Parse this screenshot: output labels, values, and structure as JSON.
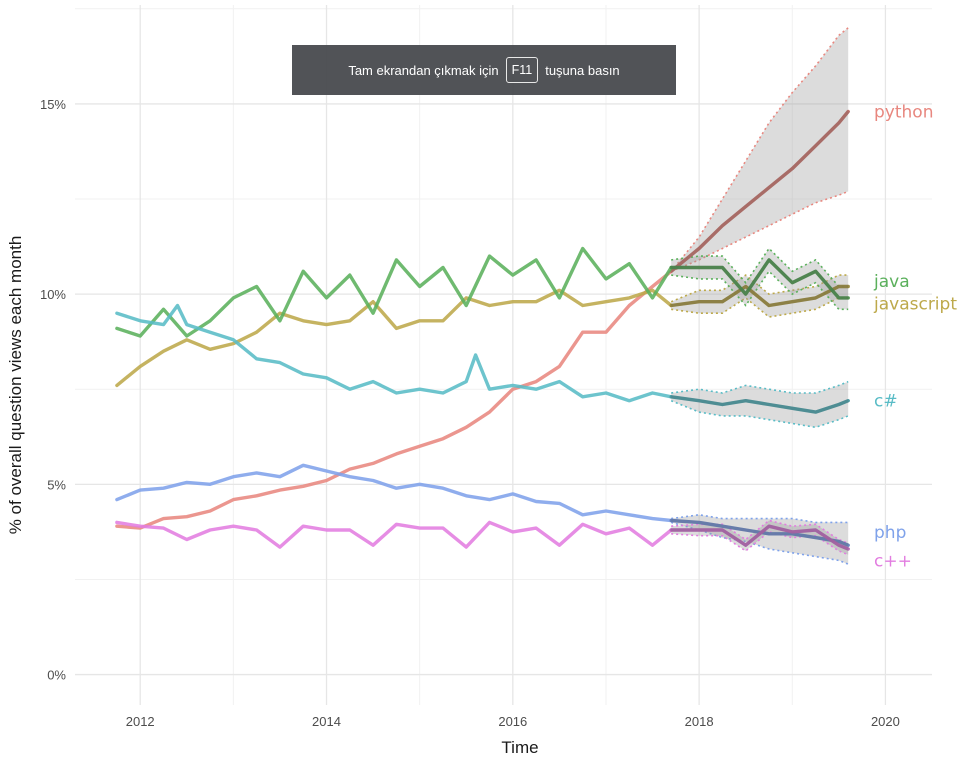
{
  "toast": {
    "before": "Tam ekrandan çıkmak için",
    "key": "F11",
    "after": "tuşuna basın"
  },
  "chart_data": {
    "type": "line",
    "title": "",
    "xlabel": "Time",
    "ylabel": "% of overall question views each month",
    "xlim": [
      2011.3,
      2020.5
    ],
    "ylim": [
      -0.8,
      17.6
    ],
    "x_ticks": [
      {
        "value": 2012,
        "label": "2012"
      },
      {
        "value": 2014,
        "label": "2014"
      },
      {
        "value": 2016,
        "label": "2016"
      },
      {
        "value": 2018,
        "label": "2018"
      },
      {
        "value": 2020,
        "label": "2020"
      }
    ],
    "y_ticks": [
      {
        "value": 0,
        "label": "0%"
      },
      {
        "value": 5,
        "label": "5%"
      },
      {
        "value": 10,
        "label": "10%"
      },
      {
        "value": 15,
        "label": "15%"
      }
    ],
    "grid": true,
    "legend": "none (direct labels at line ends)",
    "series": [
      {
        "name": "python",
        "color": "#e8877f",
        "history": [
          [
            2011.75,
            3.9
          ],
          [
            2012.0,
            3.85
          ],
          [
            2012.25,
            4.1
          ],
          [
            2012.5,
            4.15
          ],
          [
            2012.75,
            4.3
          ],
          [
            2013.0,
            4.6
          ],
          [
            2013.25,
            4.7
          ],
          [
            2013.5,
            4.85
          ],
          [
            2013.75,
            4.95
          ],
          [
            2014.0,
            5.1
          ],
          [
            2014.25,
            5.4
          ],
          [
            2014.5,
            5.55
          ],
          [
            2014.75,
            5.8
          ],
          [
            2015.0,
            6.0
          ],
          [
            2015.25,
            6.2
          ],
          [
            2015.5,
            6.5
          ],
          [
            2015.75,
            6.9
          ],
          [
            2016.0,
            7.5
          ],
          [
            2016.25,
            7.7
          ],
          [
            2016.5,
            8.1
          ],
          [
            2016.75,
            9.0
          ],
          [
            2017.0,
            9.0
          ],
          [
            2017.25,
            9.7
          ],
          [
            2017.5,
            10.2
          ],
          [
            2017.7,
            10.6
          ]
        ],
        "forecast": [
          [
            2017.7,
            10.6
          ],
          [
            2018.0,
            11.2
          ],
          [
            2018.25,
            11.8
          ],
          [
            2018.5,
            12.3
          ],
          [
            2018.75,
            12.8
          ],
          [
            2019.0,
            13.3
          ],
          [
            2019.25,
            13.9
          ],
          [
            2019.5,
            14.5
          ],
          [
            2019.6,
            14.8
          ]
        ],
        "band": [
          [
            2017.7,
            10.6,
            10.6
          ],
          [
            2018.0,
            11.5,
            10.9
          ],
          [
            2018.25,
            12.5,
            11.2
          ],
          [
            2018.5,
            13.5,
            11.5
          ],
          [
            2018.75,
            14.5,
            11.8
          ],
          [
            2019.0,
            15.3,
            12.1
          ],
          [
            2019.25,
            16.0,
            12.4
          ],
          [
            2019.5,
            16.8,
            12.6
          ],
          [
            2019.6,
            17.0,
            12.7
          ]
        ]
      },
      {
        "name": "javascript",
        "color": "#bda94b",
        "history": [
          [
            2011.75,
            7.6
          ],
          [
            2012.0,
            8.1
          ],
          [
            2012.25,
            8.5
          ],
          [
            2012.5,
            8.8
          ],
          [
            2012.75,
            8.55
          ],
          [
            2013.0,
            8.7
          ],
          [
            2013.25,
            9.0
          ],
          [
            2013.5,
            9.5
          ],
          [
            2013.75,
            9.3
          ],
          [
            2014.0,
            9.2
          ],
          [
            2014.25,
            9.3
          ],
          [
            2014.5,
            9.8
          ],
          [
            2014.75,
            9.1
          ],
          [
            2015.0,
            9.3
          ],
          [
            2015.25,
            9.3
          ],
          [
            2015.5,
            9.9
          ],
          [
            2015.75,
            9.7
          ],
          [
            2016.0,
            9.8
          ],
          [
            2016.25,
            9.8
          ],
          [
            2016.5,
            10.1
          ],
          [
            2016.75,
            9.7
          ],
          [
            2017.0,
            9.8
          ],
          [
            2017.25,
            9.9
          ],
          [
            2017.5,
            10.1
          ],
          [
            2017.7,
            9.7
          ]
        ],
        "forecast": [
          [
            2017.7,
            9.7
          ],
          [
            2018.0,
            9.8
          ],
          [
            2018.25,
            9.8
          ],
          [
            2018.5,
            10.2
          ],
          [
            2018.75,
            9.7
          ],
          [
            2019.0,
            9.8
          ],
          [
            2019.25,
            9.9
          ],
          [
            2019.5,
            10.2
          ],
          [
            2019.6,
            10.2
          ]
        ],
        "band": [
          [
            2017.7,
            9.8,
            9.6
          ],
          [
            2018.0,
            10.1,
            9.5
          ],
          [
            2018.25,
            10.1,
            9.5
          ],
          [
            2018.5,
            10.5,
            9.9
          ],
          [
            2018.75,
            10.0,
            9.4
          ],
          [
            2019.0,
            10.1,
            9.5
          ],
          [
            2019.25,
            10.2,
            9.6
          ],
          [
            2019.5,
            10.5,
            9.9
          ],
          [
            2019.6,
            10.5,
            9.9
          ]
        ]
      },
      {
        "name": "java",
        "color": "#5bb05c",
        "history": [
          [
            2011.75,
            9.1
          ],
          [
            2012.0,
            8.9
          ],
          [
            2012.25,
            9.6
          ],
          [
            2012.5,
            8.9
          ],
          [
            2012.75,
            9.3
          ],
          [
            2013.0,
            9.9
          ],
          [
            2013.25,
            10.2
          ],
          [
            2013.5,
            9.3
          ],
          [
            2013.75,
            10.6
          ],
          [
            2014.0,
            9.9
          ],
          [
            2014.25,
            10.5
          ],
          [
            2014.5,
            9.5
          ],
          [
            2014.75,
            10.9
          ],
          [
            2015.0,
            10.2
          ],
          [
            2015.25,
            10.7
          ],
          [
            2015.5,
            9.7
          ],
          [
            2015.75,
            11.0
          ],
          [
            2016.0,
            10.5
          ],
          [
            2016.25,
            10.9
          ],
          [
            2016.5,
            9.9
          ],
          [
            2016.75,
            11.2
          ],
          [
            2017.0,
            10.4
          ],
          [
            2017.25,
            10.8
          ],
          [
            2017.5,
            9.9
          ],
          [
            2017.7,
            10.7
          ]
        ],
        "forecast": [
          [
            2017.7,
            10.7
          ],
          [
            2018.0,
            10.7
          ],
          [
            2018.25,
            10.7
          ],
          [
            2018.5,
            10.0
          ],
          [
            2018.75,
            10.9
          ],
          [
            2019.0,
            10.3
          ],
          [
            2019.25,
            10.6
          ],
          [
            2019.5,
            9.9
          ],
          [
            2019.6,
            9.9
          ]
        ],
        "band": [
          [
            2017.7,
            10.9,
            10.5
          ],
          [
            2018.0,
            11.0,
            10.4
          ],
          [
            2018.25,
            11.0,
            10.4
          ],
          [
            2018.5,
            10.3,
            9.7
          ],
          [
            2018.75,
            11.2,
            10.6
          ],
          [
            2019.0,
            10.6,
            10.0
          ],
          [
            2019.25,
            10.9,
            10.3
          ],
          [
            2019.5,
            10.2,
            9.6
          ],
          [
            2019.6,
            10.2,
            9.6
          ]
        ]
      },
      {
        "name": "c#",
        "color": "#59bcc6",
        "history": [
          [
            2011.75,
            9.5
          ],
          [
            2012.0,
            9.3
          ],
          [
            2012.25,
            9.2
          ],
          [
            2012.4,
            9.7
          ],
          [
            2012.5,
            9.2
          ],
          [
            2012.75,
            9.0
          ],
          [
            2013.0,
            8.8
          ],
          [
            2013.25,
            8.3
          ],
          [
            2013.5,
            8.2
          ],
          [
            2013.75,
            7.9
          ],
          [
            2014.0,
            7.8
          ],
          [
            2014.25,
            7.5
          ],
          [
            2014.5,
            7.7
          ],
          [
            2014.75,
            7.4
          ],
          [
            2015.0,
            7.5
          ],
          [
            2015.25,
            7.4
          ],
          [
            2015.5,
            7.7
          ],
          [
            2015.6,
            8.4
          ],
          [
            2015.75,
            7.5
          ],
          [
            2016.0,
            7.6
          ],
          [
            2016.25,
            7.5
          ],
          [
            2016.5,
            7.7
          ],
          [
            2016.75,
            7.3
          ],
          [
            2017.0,
            7.4
          ],
          [
            2017.25,
            7.2
          ],
          [
            2017.5,
            7.4
          ],
          [
            2017.7,
            7.3
          ]
        ],
        "forecast": [
          [
            2017.7,
            7.3
          ],
          [
            2018.0,
            7.2
          ],
          [
            2018.25,
            7.1
          ],
          [
            2018.5,
            7.2
          ],
          [
            2018.75,
            7.1
          ],
          [
            2019.0,
            7.0
          ],
          [
            2019.25,
            6.9
          ],
          [
            2019.5,
            7.1
          ],
          [
            2019.6,
            7.2
          ]
        ],
        "band": [
          [
            2017.7,
            7.4,
            7.2
          ],
          [
            2018.0,
            7.5,
            6.9
          ],
          [
            2018.25,
            7.4,
            6.8
          ],
          [
            2018.5,
            7.6,
            6.8
          ],
          [
            2018.75,
            7.5,
            6.7
          ],
          [
            2019.0,
            7.4,
            6.6
          ],
          [
            2019.25,
            7.4,
            6.5
          ],
          [
            2019.5,
            7.6,
            6.7
          ],
          [
            2019.6,
            7.7,
            6.8
          ]
        ]
      },
      {
        "name": "php",
        "color": "#7fa2ea",
        "history": [
          [
            2011.75,
            4.6
          ],
          [
            2012.0,
            4.85
          ],
          [
            2012.25,
            4.9
          ],
          [
            2012.5,
            5.05
          ],
          [
            2012.75,
            5.0
          ],
          [
            2013.0,
            5.2
          ],
          [
            2013.25,
            5.3
          ],
          [
            2013.5,
            5.2
          ],
          [
            2013.75,
            5.5
          ],
          [
            2014.0,
            5.35
          ],
          [
            2014.25,
            5.2
          ],
          [
            2014.5,
            5.1
          ],
          [
            2014.75,
            4.9
          ],
          [
            2015.0,
            5.0
          ],
          [
            2015.25,
            4.9
          ],
          [
            2015.5,
            4.7
          ],
          [
            2015.75,
            4.6
          ],
          [
            2016.0,
            4.75
          ],
          [
            2016.25,
            4.55
          ],
          [
            2016.5,
            4.5
          ],
          [
            2016.75,
            4.2
          ],
          [
            2017.0,
            4.3
          ],
          [
            2017.25,
            4.2
          ],
          [
            2017.5,
            4.1
          ],
          [
            2017.7,
            4.05
          ]
        ],
        "forecast": [
          [
            2017.7,
            4.05
          ],
          [
            2018.0,
            4.0
          ],
          [
            2018.25,
            3.9
          ],
          [
            2018.5,
            3.8
          ],
          [
            2018.75,
            3.7
          ],
          [
            2019.0,
            3.7
          ],
          [
            2019.25,
            3.6
          ],
          [
            2019.5,
            3.5
          ],
          [
            2019.6,
            3.4
          ]
        ],
        "band": [
          [
            2017.7,
            4.1,
            4.0
          ],
          [
            2018.0,
            4.2,
            3.8
          ],
          [
            2018.25,
            4.1,
            3.6
          ],
          [
            2018.5,
            4.1,
            3.5
          ],
          [
            2018.75,
            4.1,
            3.3
          ],
          [
            2019.0,
            4.1,
            3.2
          ],
          [
            2019.25,
            4.0,
            3.1
          ],
          [
            2019.5,
            4.0,
            3.0
          ],
          [
            2019.6,
            4.0,
            2.9
          ]
        ]
      },
      {
        "name": "c++",
        "color": "#e27de0",
        "history": [
          [
            2011.75,
            4.0
          ],
          [
            2012.0,
            3.9
          ],
          [
            2012.25,
            3.85
          ],
          [
            2012.5,
            3.55
          ],
          [
            2012.75,
            3.8
          ],
          [
            2013.0,
            3.9
          ],
          [
            2013.25,
            3.8
          ],
          [
            2013.5,
            3.35
          ],
          [
            2013.75,
            3.9
          ],
          [
            2014.0,
            3.8
          ],
          [
            2014.25,
            3.8
          ],
          [
            2014.5,
            3.4
          ],
          [
            2014.75,
            3.95
          ],
          [
            2015.0,
            3.85
          ],
          [
            2015.25,
            3.85
          ],
          [
            2015.5,
            3.35
          ],
          [
            2015.75,
            4.0
          ],
          [
            2016.0,
            3.75
          ],
          [
            2016.25,
            3.85
          ],
          [
            2016.5,
            3.4
          ],
          [
            2016.75,
            3.95
          ],
          [
            2017.0,
            3.7
          ],
          [
            2017.25,
            3.85
          ],
          [
            2017.5,
            3.4
          ],
          [
            2017.7,
            3.8
          ]
        ],
        "forecast": [
          [
            2017.7,
            3.8
          ],
          [
            2018.0,
            3.8
          ],
          [
            2018.25,
            3.8
          ],
          [
            2018.5,
            3.4
          ],
          [
            2018.75,
            3.9
          ],
          [
            2019.0,
            3.75
          ],
          [
            2019.25,
            3.8
          ],
          [
            2019.5,
            3.4
          ],
          [
            2019.6,
            3.3
          ]
        ],
        "band": [
          [
            2017.7,
            3.9,
            3.7
          ],
          [
            2018.0,
            3.95,
            3.65
          ],
          [
            2018.25,
            3.95,
            3.65
          ],
          [
            2018.5,
            3.55,
            3.25
          ],
          [
            2018.75,
            4.05,
            3.75
          ],
          [
            2019.0,
            3.9,
            3.6
          ],
          [
            2019.25,
            3.95,
            3.65
          ],
          [
            2019.5,
            3.55,
            3.25
          ],
          [
            2019.6,
            3.45,
            3.15
          ]
        ]
      }
    ]
  }
}
